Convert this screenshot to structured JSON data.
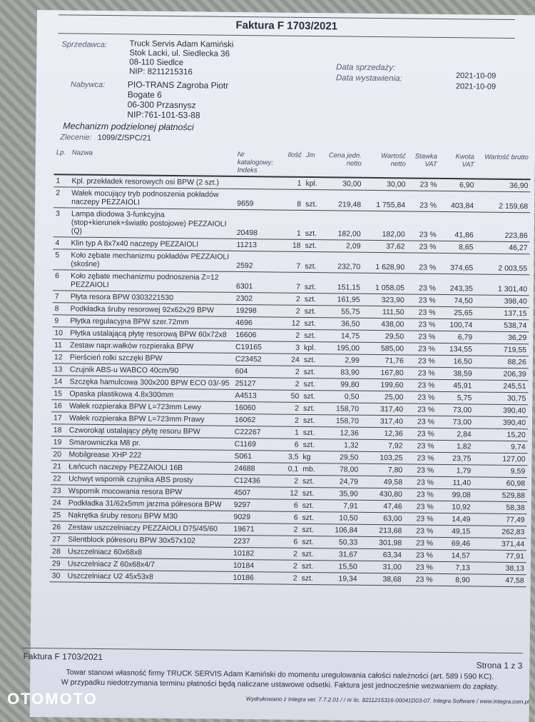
{
  "title": "Faktura  F 1703/2021",
  "seller": {
    "label": "Sprzedawca:",
    "lines": [
      "Truck Servis Adam Kamiński",
      "Stok Lacki, ul. Siedlecka 36",
      "08-110 Siedlce",
      "NIP: 8211215316"
    ]
  },
  "buyer": {
    "label": "Nabywca:",
    "lines": [
      "PIO-TRANS Zagroba Piotr",
      "Bogate 6",
      "06-300 Przasnysz",
      "NIP:761-101-53-88"
    ]
  },
  "dates": {
    "sale_label": "Data sprzedaży:",
    "issue_label": "Data wystawienia:",
    "sale": "2021-10-09",
    "issue": "2021-10-09"
  },
  "mechanism": "Mechanizm podzielonej płatności",
  "order": {
    "label": "Zlecenie:",
    "value": "1099/Z/SPC/21"
  },
  "columns": [
    "Lp.",
    "Nazwa",
    "Nr katalogowy; Indeks",
    "Ilość",
    "Jm",
    "Cena jedn. netto",
    "Wartość netto",
    "Stawka VAT",
    "Kwota VAT",
    "Wartość brutto"
  ],
  "rows": [
    [
      "1",
      "Kpl. przekładek resorowych osi BPW (2 szt.)",
      "",
      "1",
      "kpl.",
      "30,00",
      "30,00",
      "23 %",
      "6,90",
      "36,90"
    ],
    [
      "2",
      "Wałek mocujący tryb podnoszenia pokładów naczepy PEZZAIOLI",
      "9659",
      "8",
      "szt.",
      "219,48",
      "1 755,84",
      "23 %",
      "403,84",
      "2 159,68"
    ],
    [
      "3",
      "Lampa diodowa 3-funkcyjna (stop+kierunek+światło postojowe) PEZZAIOLI (Q)",
      "20498",
      "1",
      "szt.",
      "182,00",
      "182,00",
      "23 %",
      "41,86",
      "223,86"
    ],
    [
      "4",
      "Klin typ A 8x7x40 naczepy PEZZAIOLI",
      "11213",
      "18",
      "szt.",
      "2,09",
      "37,62",
      "23 %",
      "8,65",
      "46,27"
    ],
    [
      "5",
      "Koło zębate mechanizmu pokładów PEZZAIOLI (skośne)",
      "2592",
      "7",
      "szt.",
      "232,70",
      "1 628,90",
      "23 %",
      "374,65",
      "2 003,55"
    ],
    [
      "6",
      "Koło zębate mechanizmu podnoszenia Z=12 PEZZAIOLI",
      "6301",
      "7",
      "szt.",
      "151,15",
      "1 058,05",
      "23 %",
      "243,35",
      "1 301,40"
    ],
    [
      "7",
      "Płyta resora BPW 0303221530",
      "2302",
      "2",
      "szt.",
      "161,95",
      "323,90",
      "23 %",
      "74,50",
      "398,40"
    ],
    [
      "8",
      "Podkładka śruby resorowej 92x62x29 BPW",
      "19298",
      "2",
      "szt.",
      "55,75",
      "111,50",
      "23 %",
      "25,65",
      "137,15"
    ],
    [
      "9",
      "Płytka regulacyjna BPW szer.72mm",
      "4696",
      "12",
      "szt.",
      "36,50",
      "438,00",
      "23 %",
      "100,74",
      "538,74"
    ],
    [
      "10",
      "Płytka ustalającą płytę resorową BPW 60x72x8",
      "16606",
      "2",
      "szt.",
      "14,75",
      "29,50",
      "23 %",
      "6,79",
      "36,29"
    ],
    [
      "11",
      "Zestaw napr.wałków rozpieraka BPW",
      "C19165",
      "3",
      "kpl.",
      "195,00",
      "585,00",
      "23 %",
      "134,55",
      "719,55"
    ],
    [
      "12",
      "Pierścień rolki szczęki BPW",
      "C23452",
      "24",
      "szt.",
      "2,99",
      "71,76",
      "23 %",
      "16,50",
      "88,26"
    ],
    [
      "13",
      "Czujnik ABS-u WABCO 40cm/90",
      "604",
      "2",
      "szt.",
      "83,90",
      "167,80",
      "23 %",
      "38,59",
      "206,39"
    ],
    [
      "14",
      "Szczęka hamulcowa 300x200 BPW ECO 03/-95",
      "25127",
      "2",
      "szt.",
      "99,80",
      "199,60",
      "23 %",
      "45,91",
      "245,51"
    ],
    [
      "15",
      "Opaska plastikowa 4.8x300mm",
      "A4513",
      "50",
      "szt.",
      "0,50",
      "25,00",
      "23 %",
      "5,75",
      "30,75"
    ],
    [
      "16",
      "Wałek rozpieraka BPW L=723mm Lewy",
      "16060",
      "2",
      "szt.",
      "158,70",
      "317,40",
      "23 %",
      "73,00",
      "390,40"
    ],
    [
      "17",
      "Wałek rozpieraka BPW L=723mm Prawy",
      "16062",
      "2",
      "szt.",
      "158,70",
      "317,40",
      "23 %",
      "73,00",
      "390,40"
    ],
    [
      "18",
      "Czworokąt ustalający płytę resoru BPW",
      "C22267",
      "1",
      "szt.",
      "12,36",
      "12,36",
      "23 %",
      "2,84",
      "15,20"
    ],
    [
      "19",
      "Smarowniczka M8 pr.",
      "C1169",
      "6",
      "szt.",
      "1,32",
      "7,92",
      "23 %",
      "1,82",
      "9,74"
    ],
    [
      "20",
      "Mobilgrease XHP 222",
      "S061",
      "3,5",
      "kg",
      "29,50",
      "103,25",
      "23 %",
      "23,75",
      "127,00"
    ],
    [
      "21",
      "Łańcuch naczepy PEZZAIOLI 16B",
      "24688",
      "0,1",
      "mb.",
      "78,00",
      "7,80",
      "23 %",
      "1,79",
      "9,59"
    ],
    [
      "22",
      "Uchwyt wspornik czujnika ABS prosty",
      "C12436",
      "2",
      "szt.",
      "24,79",
      "49,58",
      "23 %",
      "11,40",
      "60,98"
    ],
    [
      "23",
      "Wspornik mocowania resora BPW",
      "4507",
      "12",
      "szt.",
      "35,90",
      "430,80",
      "23 %",
      "99,08",
      "529,88"
    ],
    [
      "24",
      "Podkładka 31/62x5mm jarzma półresora BPW",
      "9297",
      "6",
      "szt.",
      "7,91",
      "47,46",
      "23 %",
      "10,92",
      "58,38"
    ],
    [
      "25",
      "Nakrętka śruby resoru BPW M30",
      "9029",
      "6",
      "szt.",
      "10,50",
      "63,00",
      "23 %",
      "14,49",
      "77,49"
    ],
    [
      "26",
      "Zestaw uszczelniaczy PEZZAIOLI D75/45/60",
      "19671",
      "2",
      "szt.",
      "106,84",
      "213,68",
      "23 %",
      "49,15",
      "262,83"
    ],
    [
      "27",
      "Silentblock półresoru BPW 30x57x102",
      "2237",
      "6",
      "szt.",
      "50,33",
      "301,98",
      "23 %",
      "69,46",
      "371,44"
    ],
    [
      "28",
      "Uszczelniacz 60x68x8",
      "10182",
      "2",
      "szt.",
      "31,67",
      "63,34",
      "23 %",
      "14,57",
      "77,91"
    ],
    [
      "29",
      "Uszczelniacz Z 60x68x4/7",
      "10184",
      "2",
      "szt.",
      "15,50",
      "31,00",
      "23 %",
      "7,13",
      "38,13"
    ],
    [
      "30",
      "Uszczelniacz U2 45x53x8",
      "10186",
      "2",
      "szt.",
      "19,34",
      "38,68",
      "23 %",
      "8,90",
      "47,58"
    ]
  ],
  "footer": {
    "invoice": "Faktura  F 1703/2021",
    "page": "Strona 1 z 3",
    "legal1": "Towar stanowi własność firmy TRUCK SERVIS Adam Kamiński do momentu uregulowania całości należności (art. 589 i 590 KC).",
    "legal2": "W przypadku niedotrzymania terminu płatności będą naliczane ustawowe odsetki. Faktura jest jednocześnie wezwaniem do zapłaty.",
    "printed": "Wydrukowano z Integra ver. 7.7.2.01 / / nr lic. 8211215316-00041D03-07. Integra Software / www.integra.com.pl"
  },
  "watermark": "OTOMOTO"
}
